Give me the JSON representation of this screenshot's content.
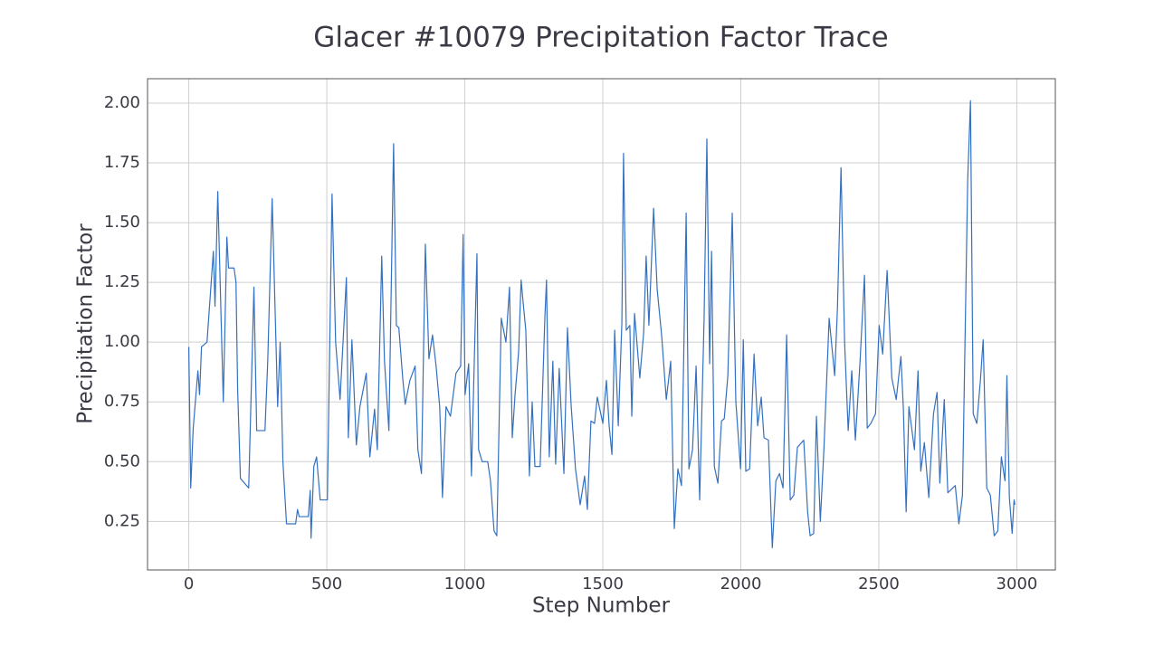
{
  "chart_data": {
    "type": "line",
    "title": "Glacer #10079 Precipitation Factor Trace",
    "x_label": "Step Number",
    "y_label": "Precipitation Factor",
    "color": "#3470c0",
    "grid": true,
    "xlim": [
      -149.5,
      3139.5
    ],
    "ylim": [
      0.047,
      2.102
    ],
    "xticks": [
      0,
      500,
      1000,
      1500,
      2000,
      2500,
      3000
    ],
    "yticks": [
      0.25,
      {
        "value": 0.5,
        "label": "0.50"
      },
      0.75,
      {
        "value": 1,
        "label": "1.00"
      },
      1.25,
      {
        "value": 1.5,
        "label": "1.50"
      },
      1.75,
      {
        "value": 2,
        "label": "2.00"
      }
    ],
    "x": [
      0,
      7,
      16,
      33,
      39,
      46,
      66,
      89,
      95,
      105,
      125,
      138,
      144,
      164,
      171,
      177,
      187,
      217,
      236,
      246,
      276,
      286,
      302,
      322,
      331,
      341,
      354,
      387,
      394,
      400,
      433,
      440,
      443,
      453,
      463,
      476,
      502,
      519,
      532,
      548,
      571,
      578,
      591,
      607,
      620,
      643,
      656,
      673,
      683,
      699,
      709,
      725,
      742,
      752,
      761,
      775,
      784,
      801,
      820,
      830,
      843,
      857,
      870,
      883,
      896,
      909,
      919,
      932,
      948,
      968,
      985,
      994,
      1001,
      1014,
      1024,
      1044,
      1050,
      1063,
      1083,
      1093,
      1106,
      1116,
      1132,
      1149,
      1162,
      1172,
      1182,
      1195,
      1204,
      1211,
      1221,
      1234,
      1244,
      1254,
      1273,
      1290,
      1296,
      1306,
      1319,
      1329,
      1342,
      1359,
      1372,
      1385,
      1401,
      1418,
      1434,
      1444,
      1457,
      1470,
      1480,
      1500,
      1513,
      1523,
      1533,
      1543,
      1556,
      1569,
      1575,
      1585,
      1598,
      1605,
      1615,
      1634,
      1648,
      1657,
      1667,
      1684,
      1697,
      1713,
      1730,
      1746,
      1759,
      1772,
      1785,
      1802,
      1812,
      1825,
      1838,
      1851,
      1867,
      1877,
      1887,
      1894,
      1904,
      1917,
      1930,
      1940,
      1953,
      1969,
      1982,
      1999,
      2009,
      2018,
      2032,
      2048,
      2061,
      2074,
      2084,
      2100,
      2114,
      2127,
      2140,
      2153,
      2166,
      2179,
      2192,
      2205,
      2228,
      2242,
      2251,
      2264,
      2274,
      2288,
      2301,
      2320,
      2340,
      2350,
      2363,
      2376,
      2389,
      2402,
      2415,
      2432,
      2448,
      2458,
      2471,
      2488,
      2501,
      2514,
      2530,
      2547,
      2563,
      2580,
      2589,
      2599,
      2609,
      2629,
      2642,
      2652,
      2665,
      2681,
      2698,
      2711,
      2721,
      2737,
      2750,
      2777,
      2790,
      2803,
      2822,
      2832,
      2842,
      2855,
      2868,
      2878,
      2891,
      2904,
      2918,
      2931,
      2944,
      2957,
      2964,
      2973,
      2983,
      2990,
      2993
    ],
    "values": [
      0.98,
      0.39,
      0.64,
      0.88,
      0.78,
      0.98,
      1.0,
      1.38,
      1.15,
      1.63,
      0.75,
      1.44,
      1.31,
      1.31,
      1.25,
      0.8,
      0.43,
      0.39,
      1.23,
      0.63,
      0.63,
      0.92,
      1.6,
      0.73,
      1.0,
      0.5,
      0.24,
      0.24,
      0.3,
      0.27,
      0.27,
      0.38,
      0.18,
      0.48,
      0.52,
      0.34,
      0.34,
      1.62,
      1.0,
      0.76,
      1.27,
      0.6,
      1.01,
      0.57,
      0.73,
      0.87,
      0.52,
      0.72,
      0.55,
      1.36,
      0.92,
      0.63,
      1.83,
      1.07,
      1.06,
      0.85,
      0.74,
      0.84,
      0.9,
      0.55,
      0.45,
      1.41,
      0.93,
      1.03,
      0.9,
      0.73,
      0.35,
      0.73,
      0.69,
      0.87,
      0.9,
      1.45,
      0.78,
      0.91,
      0.44,
      1.37,
      0.55,
      0.5,
      0.5,
      0.42,
      0.21,
      0.19,
      1.1,
      1.0,
      1.23,
      0.6,
      0.78,
      0.96,
      1.26,
      1.17,
      1.05,
      0.44,
      0.75,
      0.48,
      0.48,
      1.1,
      1.26,
      0.52,
      0.92,
      0.49,
      0.89,
      0.45,
      1.06,
      0.74,
      0.47,
      0.32,
      0.44,
      0.3,
      0.67,
      0.66,
      0.77,
      0.66,
      0.84,
      0.65,
      0.53,
      1.05,
      0.65,
      1.08,
      1.79,
      1.05,
      1.07,
      0.69,
      1.12,
      0.85,
      1.04,
      1.36,
      1.07,
      1.56,
      1.22,
      1.03,
      0.76,
      0.92,
      0.22,
      0.47,
      0.4,
      1.54,
      0.47,
      0.55,
      0.9,
      0.34,
      1.1,
      1.85,
      0.91,
      1.38,
      0.48,
      0.41,
      0.67,
      0.68,
      0.86,
      1.54,
      0.75,
      0.47,
      1.01,
      0.46,
      0.47,
      0.95,
      0.65,
      0.77,
      0.6,
      0.59,
      0.14,
      0.42,
      0.45,
      0.39,
      1.03,
      0.34,
      0.36,
      0.56,
      0.59,
      0.29,
      0.19,
      0.2,
      0.69,
      0.25,
      0.55,
      1.1,
      0.86,
      1.14,
      1.73,
      1.0,
      0.63,
      0.88,
      0.59,
      0.92,
      1.28,
      0.64,
      0.66,
      0.7,
      1.07,
      0.95,
      1.3,
      0.85,
      0.76,
      0.94,
      0.72,
      0.29,
      0.73,
      0.55,
      0.88,
      0.46,
      0.58,
      0.35,
      0.7,
      0.79,
      0.41,
      0.76,
      0.37,
      0.4,
      0.24,
      0.36,
      1.68,
      2.01,
      0.7,
      0.66,
      0.84,
      1.01,
      0.39,
      0.36,
      0.19,
      0.21,
      0.52,
      0.42,
      0.86,
      0.35,
      0.2,
      0.34,
      0.32
    ]
  }
}
